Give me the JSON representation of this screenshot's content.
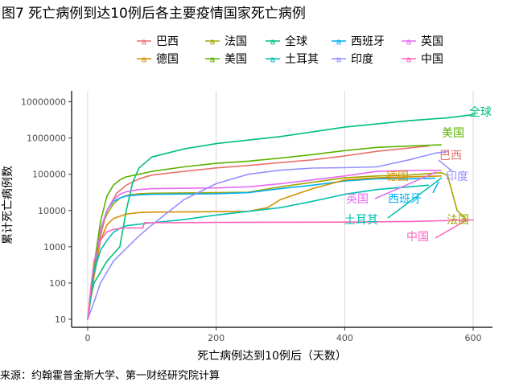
{
  "chart_data": {
    "type": "line",
    "title": "图7 死亡病例到达10例后各主要疫情国家死亡病例",
    "xlabel": "死亡病例达到10例后（天数）",
    "ylabel": "累计死亡病例数",
    "source": "来源：约翰霍普金斯大学、第一财经研究院计算",
    "y_scale": "log10",
    "xlim": [
      -25,
      630
    ],
    "ylim": [
      6,
      20000000
    ],
    "x_ticks": [
      0,
      200,
      400,
      600
    ],
    "x_tick_labels": [
      "0",
      "200",
      "400",
      "600"
    ],
    "y_ticks": [
      10,
      100,
      1000,
      10000,
      100000,
      1000000,
      10000000
    ],
    "y_tick_labels": [
      "10",
      "100",
      "1000",
      "10000",
      "100000",
      "1000000",
      "10000000"
    ],
    "grid": "vertical-major",
    "legend_position": "top",
    "series": [
      {
        "name": "巴西",
        "color": "#E8736C",
        "legend_row": 0,
        "legend_col": 0,
        "x": [
          0,
          10,
          20,
          30,
          45,
          60,
          80,
          100,
          150,
          200,
          250,
          300,
          350,
          400,
          450,
          500,
          530
        ],
        "y": [
          10,
          200,
          2000,
          10000,
          30000,
          50000,
          75000,
          95000,
          120000,
          150000,
          175000,
          210000,
          250000,
          320000,
          430000,
          530000,
          600000
        ]
      },
      {
        "name": "法国",
        "color": "#A3A500",
        "legend_row": 0,
        "legend_col": 1,
        "x": [
          0,
          10,
          20,
          30,
          40,
          50,
          60,
          80,
          100,
          200,
          250,
          300,
          350,
          400,
          450,
          500,
          550,
          560,
          575,
          590
        ],
        "y": [
          10,
          300,
          3000,
          8000,
          15000,
          22000,
          26000,
          29000,
          30000,
          31000,
          32000,
          45000,
          60000,
          80000,
          90000,
          95000,
          110000,
          95000,
          10000,
          5500
        ]
      },
      {
        "name": "全球",
        "color": "#00BF7D",
        "legend_row": 0,
        "legend_col": 2,
        "x": [
          0,
          5,
          10,
          20,
          30,
          50,
          60,
          70,
          80,
          100,
          150,
          200,
          300,
          400,
          500,
          540,
          560,
          600
        ],
        "y": [
          10,
          40,
          100,
          200,
          400,
          1000,
          10000,
          60000,
          150000,
          300000,
          500000,
          700000,
          1100000,
          2000000,
          3000000,
          3400000,
          3600000,
          4400000
        ]
      },
      {
        "name": "西班牙",
        "color": "#00B0F6",
        "legend_row": 0,
        "legend_col": 3,
        "x": [
          0,
          10,
          20,
          30,
          40,
          50,
          60,
          80,
          100,
          200,
          250,
          300,
          350,
          400,
          450,
          500,
          540
        ],
        "y": [
          10,
          200,
          3000,
          10000,
          18000,
          22000,
          25000,
          27000,
          28000,
          29000,
          31000,
          40000,
          50000,
          65000,
          75000,
          75000,
          78000
        ]
      },
      {
        "name": "英国",
        "color": "#E76BF3",
        "legend_row": 0,
        "legend_col": 4,
        "x": [
          0,
          10,
          20,
          30,
          40,
          50,
          60,
          80,
          100,
          200,
          250,
          300,
          350,
          400,
          450,
          500,
          550
        ],
        "y": [
          10,
          300,
          3000,
          10000,
          20000,
          28000,
          33000,
          38000,
          40000,
          42000,
          45000,
          55000,
          70000,
          90000,
          120000,
          127000,
          128000
        ]
      },
      {
        "name": "德国",
        "color": "#D39200",
        "legend_row": 1,
        "legend_col": 0,
        "x": [
          0,
          10,
          20,
          30,
          40,
          60,
          80,
          100,
          200,
          250,
          280,
          300,
          350,
          400,
          450,
          500,
          550
        ],
        "y": [
          10,
          150,
          1500,
          4000,
          6000,
          8000,
          8800,
          9000,
          9300,
          9500,
          12000,
          20000,
          40000,
          70000,
          80000,
          85000,
          90000
        ]
      },
      {
        "name": "美国",
        "color": "#5BB300",
        "legend_row": 1,
        "legend_col": 1,
        "x": [
          0,
          10,
          20,
          30,
          40,
          50,
          60,
          80,
          100,
          150,
          200,
          250,
          300,
          350,
          400,
          450,
          500,
          550
        ],
        "y": [
          10,
          300,
          5000,
          25000,
          50000,
          70000,
          85000,
          100000,
          120000,
          160000,
          200000,
          230000,
          280000,
          350000,
          450000,
          550000,
          600000,
          650000
        ]
      },
      {
        "name": "土耳其",
        "color": "#00C0AF",
        "legend_row": 1,
        "legend_col": 2,
        "x": [
          0,
          10,
          20,
          30,
          40,
          50,
          60,
          100,
          150,
          200,
          250,
          300,
          350,
          400,
          450,
          500,
          530
        ],
        "y": [
          10,
          200,
          800,
          1500,
          2500,
          3200,
          3800,
          4600,
          5600,
          7500,
          9500,
          12000,
          18000,
          28000,
          38000,
          45000,
          50000
        ]
      },
      {
        "name": "印度",
        "color": "#9590FF",
        "legend_row": 1,
        "legend_col": 3,
        "x": [
          0,
          10,
          20,
          30,
          40,
          60,
          80,
          100,
          150,
          200,
          250,
          300,
          350,
          400,
          450,
          500,
          540,
          560
        ],
        "y": [
          10,
          30,
          100,
          200,
          400,
          900,
          2000,
          4000,
          20000,
          55000,
          100000,
          130000,
          148000,
          152000,
          160000,
          250000,
          380000,
          420000
        ]
      },
      {
        "name": "中国",
        "color": "#FF62BC",
        "legend_row": 1,
        "legend_col": 4,
        "x": [
          0,
          5,
          10,
          20,
          30,
          40,
          50,
          60,
          86,
          88,
          100,
          200,
          400,
          500,
          600
        ],
        "y": [
          10,
          80,
          400,
          1500,
          2600,
          3000,
          3200,
          3300,
          3300,
          4600,
          4600,
          4700,
          4800,
          5000,
          5500
        ]
      }
    ],
    "end_labels": [
      {
        "series": "全球",
        "text": "全球"
      },
      {
        "series": "美国",
        "text": "美国"
      },
      {
        "series": "巴西",
        "text": "巴西"
      },
      {
        "series": "印度",
        "text": "印度"
      },
      {
        "series": "德国",
        "text": "德国"
      },
      {
        "series": "英国",
        "text": "英国"
      },
      {
        "series": "西班牙",
        "text": "西班牙"
      },
      {
        "series": "土耳其",
        "text": "土耳其"
      },
      {
        "series": "法国",
        "text": "法国"
      },
      {
        "series": "中国",
        "text": "中国"
      }
    ]
  }
}
